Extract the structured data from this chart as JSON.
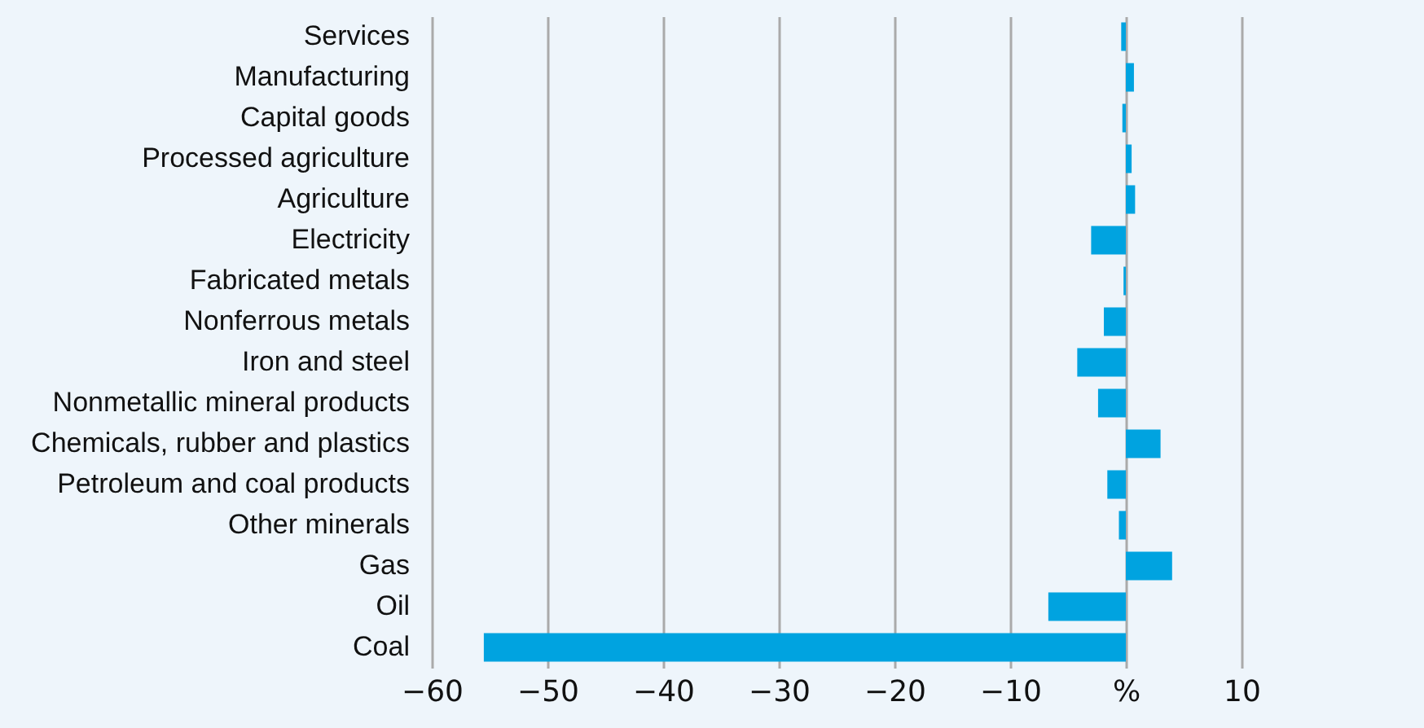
{
  "chart_data": {
    "type": "bar",
    "orientation": "horizontal",
    "categories": [
      "Services",
      "Manufacturing",
      "Capital goods",
      "Processed agriculture",
      "Agriculture",
      "Electricity",
      "Fabricated metals",
      "Nonferrous metals",
      "Iron and steel",
      "Nonmetallic mineral products",
      "Chemicals, rubber and plastics",
      "Petroleum and coal products",
      "Other minerals",
      "Gas",
      "Oil",
      "Coal"
    ],
    "values": [
      -0.4,
      0.7,
      -0.3,
      0.5,
      0.8,
      -3.0,
      -0.2,
      -1.9,
      -4.2,
      -2.4,
      3.0,
      -1.6,
      -0.6,
      4.0,
      -6.7,
      -55.5
    ],
    "color": "#00a3e0",
    "xlim": [
      -60,
      10
    ],
    "xticks": [
      -60,
      -50,
      -40,
      -30,
      -20,
      -10,
      {
        "value": 0,
        "label": "%"
      },
      10
    ],
    "grid": "x"
  }
}
